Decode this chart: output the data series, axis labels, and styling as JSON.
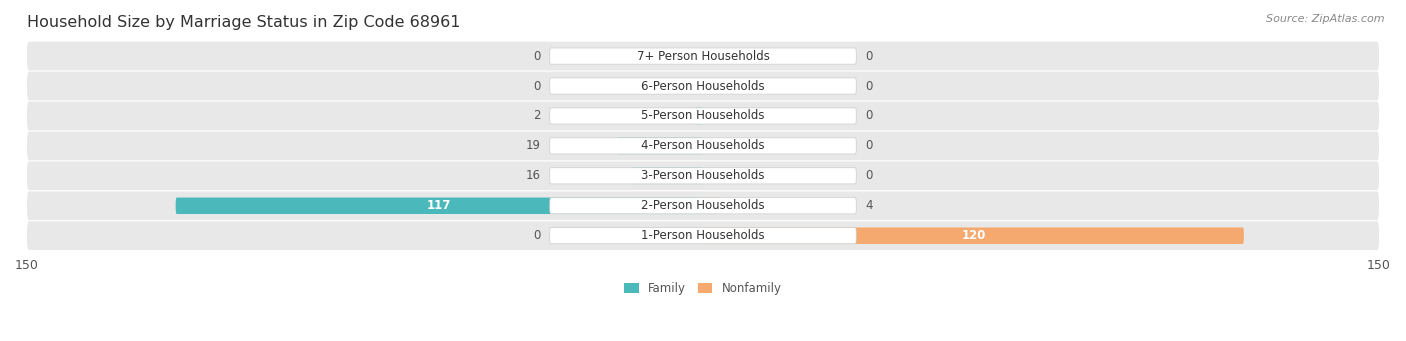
{
  "title": "Household Size by Marriage Status in Zip Code 68961",
  "source": "Source: ZipAtlas.com",
  "categories": [
    "7+ Person Households",
    "6-Person Households",
    "5-Person Households",
    "4-Person Households",
    "3-Person Households",
    "2-Person Households",
    "1-Person Households"
  ],
  "family_values": [
    0,
    0,
    2,
    19,
    16,
    117,
    0
  ],
  "nonfamily_values": [
    0,
    0,
    0,
    0,
    0,
    4,
    120
  ],
  "xlim": 150,
  "family_color": "#4bb8bc",
  "nonfamily_color": "#f5a96e",
  "row_bg_color": "#e8e8e8",
  "label_bg_color": "#ffffff",
  "title_fontsize": 11.5,
  "source_fontsize": 8,
  "label_fontsize": 8.5,
  "value_fontsize": 8.5,
  "axis_fontsize": 9
}
